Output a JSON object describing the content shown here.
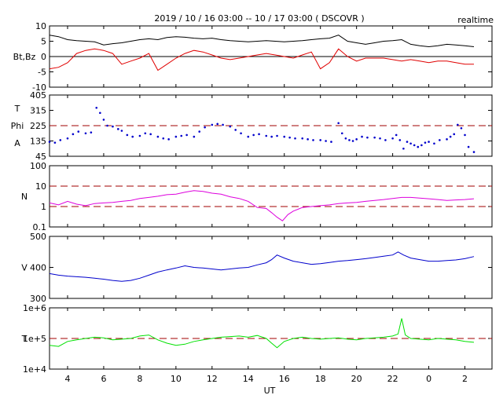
{
  "header": {
    "title": "2019 / 10 / 16   03:00  --  10 / 17   03:00  ( DSCOVR )",
    "mode": "realtime"
  },
  "x_axis": {
    "label": "UT",
    "tick_labels": [
      "4",
      "6",
      "8",
      "10",
      "12",
      "14",
      "16",
      "18",
      "20",
      "22",
      "0",
      "2"
    ]
  },
  "chart_data": [
    {
      "type": "line",
      "panel": "magnetic_field",
      "ylabel": "Bt,Bz",
      "ylim": [
        -10,
        10
      ],
      "tick_labels": [
        "10",
        "5",
        "0",
        "-5",
        "-10"
      ],
      "hours_range": [
        3,
        27.5
      ],
      "reference_lines": [
        0
      ],
      "series": [
        {
          "color": "#000000",
          "x": [
            3,
            3.5,
            4,
            4.5,
            5,
            5.5,
            6,
            6.5,
            7,
            7.5,
            8,
            8.5,
            9,
            9.5,
            10,
            10.5,
            11,
            11.5,
            12,
            12.5,
            13,
            13.5,
            14,
            14.5,
            15,
            15.5,
            16,
            16.5,
            17,
            17.5,
            18,
            18.5,
            19,
            19.5,
            20,
            20.5,
            21,
            21.5,
            22,
            22.5,
            23,
            23.5,
            24,
            24.5,
            25,
            25.5,
            26,
            26.5
          ],
          "values": [
            7,
            6.5,
            5.5,
            5.2,
            5,
            4.8,
            3.8,
            4.2,
            4.5,
            5,
            5.5,
            5.8,
            5.5,
            6.2,
            6.5,
            6.3,
            6,
            5.8,
            6,
            5.5,
            5.2,
            5,
            4.8,
            5,
            5.2,
            5,
            4.8,
            5,
            5.2,
            5.5,
            5.8,
            6,
            7,
            5,
            4.5,
            4,
            4.5,
            5,
            5.2,
            5.5,
            4,
            3.5,
            3.2,
            3.5,
            4,
            3.8,
            3.5,
            3.2
          ]
        },
        {
          "color": "#e00000",
          "x": [
            3,
            3.5,
            4,
            4.5,
            5,
            5.5,
            6,
            6.5,
            7,
            7.5,
            8,
            8.5,
            9,
            9.5,
            10,
            10.5,
            11,
            11.5,
            12,
            12.5,
            13,
            13.5,
            14,
            14.5,
            15,
            15.5,
            16,
            16.5,
            17,
            17.5,
            18,
            18.5,
            19,
            19.5,
            20,
            20.5,
            21,
            21.5,
            22,
            22.5,
            23,
            23.5,
            24,
            24.5,
            25,
            25.5,
            26,
            26.5
          ],
          "values": [
            -4,
            -3.5,
            -2,
            1,
            2,
            2.5,
            2,
            1,
            -2.5,
            -1.5,
            -0.5,
            1,
            -4.5,
            -2.5,
            -0.5,
            1,
            2,
            1.5,
            0.5,
            -0.5,
            -1,
            -0.5,
            0,
            0.5,
            1,
            0.5,
            0,
            -0.5,
            0.5,
            1.5,
            -4,
            -2,
            2.5,
            0,
            -1.5,
            -0.5,
            -0.5,
            -0.5,
            -1,
            -1.5,
            -1,
            -1.5,
            -2,
            -1.5,
            -1.5,
            -2,
            -2.5,
            -2.5
          ]
        }
      ]
    },
    {
      "type": "scatter",
      "panel": "phi_angle",
      "ylabel_lines": [
        "T",
        "Phi",
        "A"
      ],
      "ylim": [
        45,
        405
      ],
      "tick_labels": [
        "405",
        "315",
        "225",
        "135",
        "45"
      ],
      "reference_lines": [
        225
      ],
      "series": [
        {
          "color": "#0000cc",
          "x": [
            3,
            3.3,
            3.6,
            4,
            4.3,
            4.6,
            5,
            5.3,
            5.6,
            5.8,
            6,
            6.2,
            6.5,
            6.8,
            7,
            7.3,
            7.6,
            8,
            8.3,
            8.6,
            9,
            9.3,
            9.6,
            10,
            10.3,
            10.6,
            11,
            11.3,
            11.6,
            12,
            12.3,
            12.6,
            13,
            13.3,
            13.6,
            14,
            14.3,
            14.6,
            15,
            15.3,
            15.6,
            16,
            16.3,
            16.6,
            17,
            17.3,
            17.6,
            18,
            18.3,
            18.6,
            19,
            19.2,
            19.4,
            19.6,
            19.8,
            20,
            20.3,
            20.6,
            21,
            21.3,
            21.6,
            22,
            22.2,
            22.4,
            22.6,
            22.8,
            23,
            23.2,
            23.4,
            23.6,
            23.8,
            24,
            24.3,
            24.6,
            25,
            25.2,
            25.4,
            25.6,
            25.8,
            26,
            26.2,
            26.5
          ],
          "values": [
            130,
            125,
            140,
            150,
            175,
            190,
            180,
            185,
            330,
            300,
            260,
            225,
            220,
            205,
            195,
            170,
            160,
            165,
            180,
            175,
            160,
            150,
            145,
            160,
            165,
            170,
            160,
            190,
            215,
            230,
            235,
            230,
            220,
            200,
            180,
            160,
            170,
            175,
            165,
            160,
            165,
            160,
            155,
            150,
            150,
            145,
            140,
            140,
            135,
            130,
            240,
            180,
            150,
            140,
            135,
            145,
            160,
            155,
            155,
            150,
            140,
            150,
            170,
            140,
            90,
            130,
            120,
            110,
            100,
            110,
            125,
            130,
            120,
            140,
            145,
            160,
            175,
            230,
            210,
            170,
            100,
            70
          ]
        }
      ]
    },
    {
      "type": "line",
      "panel": "density",
      "ylabel": "N",
      "ylim": [
        0.1,
        100
      ],
      "log_scale": true,
      "tick_labels": [
        "100",
        "10",
        "1",
        "0.1"
      ],
      "reference_lines": [
        1,
        10
      ],
      "series": [
        {
          "color": "#dd00dd",
          "x": [
            3,
            3.5,
            4,
            4.5,
            5,
            5.5,
            6,
            6.5,
            7,
            7.5,
            8,
            8.5,
            9,
            9.5,
            10,
            10.5,
            11,
            11.5,
            12,
            12.5,
            13,
            13.5,
            14,
            14.5,
            15,
            15.3,
            15.6,
            15.9,
            16.2,
            16.5,
            17,
            17.5,
            18,
            18.5,
            19,
            19.5,
            20,
            20.5,
            21,
            21.5,
            22,
            22.5,
            23,
            23.5,
            24,
            24.5,
            25,
            25.5,
            26,
            26.5
          ],
          "values": [
            1.5,
            1.2,
            1.8,
            1.3,
            1.1,
            1.4,
            1.5,
            1.6,
            1.8,
            2,
            2.5,
            2.8,
            3.2,
            3.8,
            4,
            5,
            6,
            5.5,
            4.5,
            4,
            3,
            2.5,
            1.8,
            0.9,
            0.8,
            0.5,
            0.3,
            0.2,
            0.4,
            0.6,
            0.9,
            1,
            1.1,
            1.2,
            1.4,
            1.5,
            1.6,
            1.8,
            2,
            2.2,
            2.5,
            2.8,
            2.8,
            2.6,
            2.4,
            2.2,
            2,
            2.1,
            2.2,
            2.4
          ]
        }
      ]
    },
    {
      "type": "line",
      "panel": "speed",
      "ylabel": "V",
      "ylim": [
        300,
        500
      ],
      "tick_labels": [
        "500",
        "400",
        "300"
      ],
      "series": [
        {
          "color": "#0000cc",
          "x": [
            3,
            3.5,
            4,
            4.5,
            5,
            5.5,
            6,
            6.5,
            7,
            7.5,
            8,
            8.5,
            9,
            9.5,
            10,
            10.5,
            11,
            11.5,
            12,
            12.5,
            13,
            13.5,
            14,
            14.5,
            15,
            15.3,
            15.6,
            16,
            16.5,
            17,
            17.5,
            18,
            18.5,
            19,
            19.5,
            20,
            20.5,
            21,
            21.5,
            22,
            22.3,
            22.6,
            23,
            23.5,
            24,
            24.5,
            25,
            25.5,
            26,
            26.5
          ],
          "values": [
            380,
            375,
            372,
            370,
            368,
            365,
            362,
            358,
            355,
            358,
            365,
            375,
            385,
            392,
            398,
            405,
            400,
            398,
            395,
            392,
            395,
            398,
            400,
            408,
            415,
            425,
            440,
            430,
            420,
            415,
            410,
            412,
            416,
            420,
            422,
            425,
            428,
            432,
            436,
            440,
            450,
            440,
            430,
            425,
            420,
            420,
            422,
            424,
            428,
            435
          ]
        }
      ]
    },
    {
      "type": "line",
      "panel": "temperature",
      "ylabel": "T",
      "ylim": [
        10000,
        1000000
      ],
      "log_scale": true,
      "tick_labels": [
        "1e+6",
        "1e+5",
        "1e+4"
      ],
      "reference_lines": [
        100000
      ],
      "series": [
        {
          "color": "#00e000",
          "x": [
            3,
            3.5,
            4,
            4.5,
            5,
            5.5,
            6,
            6.5,
            7,
            7.5,
            8,
            8.5,
            9,
            9.5,
            10,
            10.5,
            11,
            11.5,
            12,
            12.5,
            13,
            13.5,
            14,
            14.5,
            15,
            15.3,
            15.6,
            16,
            16.5,
            17,
            17.5,
            18,
            18.5,
            19,
            19.5,
            20,
            20.5,
            21,
            21.5,
            22,
            22.3,
            22.5,
            22.7,
            23,
            23.5,
            24,
            24.5,
            25,
            25.5,
            26,
            26.5
          ],
          "values": [
            60000,
            55000,
            80000,
            90000,
            100000,
            110000,
            105000,
            90000,
            95000,
            100000,
            120000,
            130000,
            90000,
            70000,
            60000,
            65000,
            80000,
            90000,
            100000,
            110000,
            115000,
            120000,
            110000,
            125000,
            100000,
            70000,
            50000,
            80000,
            100000,
            110000,
            100000,
            95000,
            100000,
            105000,
            95000,
            90000,
            100000,
            105000,
            110000,
            120000,
            140000,
            450000,
            130000,
            100000,
            95000,
            90000,
            100000,
            95000,
            90000,
            80000,
            75000
          ]
        }
      ]
    }
  ]
}
